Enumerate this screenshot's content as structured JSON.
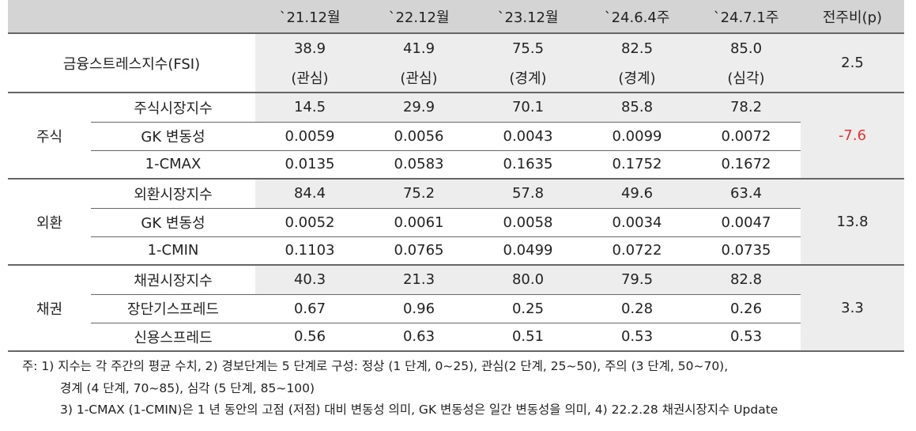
{
  "header": [
    "",
    "`21.12월",
    "`22.12월",
    "`23.12월",
    "`24.6.4주",
    "`24.7.1주",
    "전주비(p)"
  ],
  "fsi": {
    "label": "금융스트레스지수(FSI)",
    "values": [
      "38.9",
      "41.9",
      "75.5",
      "82.5",
      "85.0"
    ],
    "levels": [
      "(관심)",
      "(관심)",
      "(경계)",
      "(경계)",
      "(심각)"
    ],
    "change": "2.5"
  },
  "groups": [
    {
      "name": "주식",
      "change": "-7.6",
      "rows": [
        {
          "label": "주식시장지수",
          "values": [
            "14.5",
            "29.9",
            "70.1",
            "85.8",
            "78.2"
          ]
        },
        {
          "label": "GK 변동성",
          "values": [
            "0.0059",
            "0.0056",
            "0.0043",
            "0.0099",
            "0.0072"
          ]
        },
        {
          "label": "1-CMAX",
          "values": [
            "0.0135",
            "0.0583",
            "0.1635",
            "0.1752",
            "0.1672"
          ]
        }
      ]
    },
    {
      "name": "외환",
      "change": "13.8",
      "rows": [
        {
          "label": "외환시장지수",
          "values": [
            "84.4",
            "75.2",
            "57.8",
            "49.6",
            "63.4"
          ]
        },
        {
          "label": "GK 변동성",
          "values": [
            "0.0052",
            "0.0061",
            "0.0058",
            "0.0034",
            "0.0047"
          ]
        },
        {
          "label": "1-CMIN",
          "values": [
            "0.1103",
            "0.0765",
            "0.0499",
            "0.0722",
            "0.0735"
          ]
        }
      ]
    },
    {
      "name": "채권",
      "change": "3.3",
      "rows": [
        {
          "label": "채권시장지수",
          "values": [
            "40.3",
            "21.3",
            "80.0",
            "79.5",
            "82.8"
          ]
        },
        {
          "label": "장단기스프레드",
          "values": [
            "0.67",
            "0.96",
            "0.25",
            "0.28",
            "0.26"
          ]
        },
        {
          "label": "신용스프레드",
          "values": [
            "0.56",
            "0.63",
            "0.51",
            "0.53",
            "0.53"
          ]
        }
      ]
    }
  ],
  "notes": [
    "주: 1) 지수는 각 주간의 평균 수치, 2) 경보단계는 5 단계로 구성: 정상 (1 단계, 0~25), 관심(2 단계, 25~50), 주의 (3 단계, 50~70),",
    "경계 (4 단계, 70~85), 심각 (5 단계, 85~100)",
    "3) 1-CMAX (1-CMIN)은 1 년 동안의 고점 (저점) 대비 변동성 의미, GK 변동성은 일간 변동성을 의미, 4) 22.2.28 채권시장지수 Update"
  ],
  "colors": {
    "header_bg": "#d4d4d4",
    "gray_bg": "#ededed",
    "negative": "#e8322f"
  }
}
